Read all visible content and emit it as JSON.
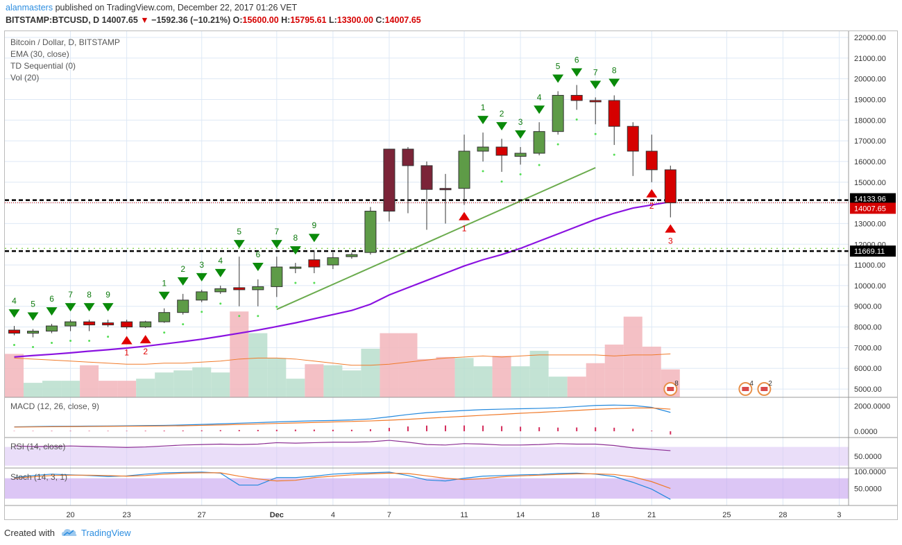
{
  "header": {
    "author": "alanmasters",
    "published_text": "published on TradingView.com, December 22, 2017 01:26 VET",
    "symbol": "BITSTAMP:BTCUSD, D",
    "price": "14007.65",
    "arrow": "▼",
    "change": "−1592.36 (−10.21%)",
    "o_label": "O:",
    "o_value": "15600.00",
    "h_label": "H:",
    "h_value": "15795.61",
    "l_label": "L:",
    "l_value": "13300.00",
    "c_label": "C:",
    "c_value": "14007.65"
  },
  "footer": {
    "created_with": "Created with",
    "brand": "TradingView"
  },
  "colors": {
    "up_fill": "#5e9b47",
    "down_fill": "#d50000",
    "dark_fill": "#7b2438",
    "ema": "#8a12e0",
    "trend": "#6aab4d",
    "td_green": "#0d7a0d",
    "td_red": "#e00000",
    "vol_up": "#b8decd",
    "vol_down": "#f2b5bb",
    "grid": "#dde8f5",
    "macd": "#2288dd",
    "signal": "#f07a2a",
    "rsi": "#8b2c93",
    "stoch_k": "#2288dd",
    "stoch_d": "#f07a2a",
    "osc_band": "#dcc8f5"
  },
  "chart_data": {
    "type": "candlestick",
    "title": "Bitcoin / Dollar, D, BITSTAMP",
    "indicators": [
      "EMA (30, close)",
      "TD Sequential (0)",
      "Vol (20)"
    ],
    "x_tick_labels": [
      {
        "i": 3,
        "label": "20"
      },
      {
        "i": 6,
        "label": "23"
      },
      {
        "i": 10,
        "label": "27"
      },
      {
        "i": 14,
        "label": "Dec"
      },
      {
        "i": 17,
        "label": "4"
      },
      {
        "i": 20,
        "label": "7"
      },
      {
        "i": 24,
        "label": "11"
      },
      {
        "i": 27,
        "label": "14"
      },
      {
        "i": 31,
        "label": "18"
      },
      {
        "i": 34,
        "label": "21"
      },
      {
        "i": 38,
        "label": "25"
      },
      {
        "i": 41,
        "label": "28"
      },
      {
        "i": 44,
        "label": "3"
      }
    ],
    "total_slots": 45,
    "y_ticks": [
      5000,
      6000,
      7000,
      8000,
      9000,
      10000,
      11000,
      12000,
      13000,
      14000,
      15000,
      16000,
      17000,
      18000,
      19000,
      20000,
      21000,
      22000
    ],
    "y_tick_labels": [
      "5000.00",
      "6000.00",
      "7000.00",
      "8000.00",
      "9000.00",
      "10000.00",
      "11000.00",
      "12000.00",
      "13000.00",
      "14000.00",
      "15000.00",
      "16000.00",
      "17000.00",
      "18000.00",
      "19000.00",
      "20000.00",
      "21000.00",
      "22000.00"
    ],
    "ylim": [
      4600,
      22300
    ],
    "candles": [
      {
        "o": 7850,
        "h": 8050,
        "l": 7600,
        "c": 7700,
        "v": 6700,
        "k": "dn"
      },
      {
        "o": 7700,
        "h": 7900,
        "l": 7500,
        "c": 7800,
        "v": 5300,
        "k": "up"
      },
      {
        "o": 7800,
        "h": 8150,
        "l": 7700,
        "c": 8050,
        "v": 5400,
        "k": "up"
      },
      {
        "o": 8050,
        "h": 8350,
        "l": 7800,
        "c": 8250,
        "v": 5400,
        "k": "up"
      },
      {
        "o": 8250,
        "h": 8350,
        "l": 7800,
        "c": 8100,
        "v": 6150,
        "k": "dn"
      },
      {
        "o": 8200,
        "h": 8350,
        "l": 8000,
        "c": 8100,
        "v": 5400,
        "k": "dn"
      },
      {
        "o": 8250,
        "h": 8350,
        "l": 7900,
        "c": 8000,
        "v": 5400,
        "k": "dn"
      },
      {
        "o": 8000,
        "h": 8300,
        "l": 7950,
        "c": 8250,
        "v": 5500,
        "k": "up"
      },
      {
        "o": 8250,
        "h": 8900,
        "l": 8200,
        "c": 8700,
        "v": 5800,
        "k": "up"
      },
      {
        "o": 8700,
        "h": 9600,
        "l": 8600,
        "c": 9300,
        "v": 5900,
        "k": "up"
      },
      {
        "o": 9300,
        "h": 9800,
        "l": 9200,
        "c": 9700,
        "v": 6050,
        "k": "up"
      },
      {
        "o": 9700,
        "h": 10000,
        "l": 9600,
        "c": 9850,
        "v": 5800,
        "k": "up"
      },
      {
        "o": 9900,
        "h": 11400,
        "l": 9000,
        "c": 9800,
        "v": 8750,
        "k": "dn"
      },
      {
        "o": 9800,
        "h": 10300,
        "l": 9000,
        "c": 9950,
        "v": 7700,
        "k": "up"
      },
      {
        "o": 9950,
        "h": 11400,
        "l": 9450,
        "c": 10900,
        "v": 6500,
        "k": "up"
      },
      {
        "o": 10850,
        "h": 11100,
        "l": 10600,
        "c": 10900,
        "v": 5500,
        "k": "up"
      },
      {
        "o": 11250,
        "h": 11700,
        "l": 10600,
        "c": 10900,
        "v": 6200,
        "k": "dn"
      },
      {
        "o": 11000,
        "h": 11600,
        "l": 10800,
        "c": 11350,
        "v": 6150,
        "k": "up"
      },
      {
        "o": 11400,
        "h": 11600,
        "l": 11300,
        "c": 11500,
        "v": 5900,
        "k": "up"
      },
      {
        "o": 11600,
        "h": 13800,
        "l": 11500,
        "c": 13600,
        "v": 6950,
        "k": "up"
      },
      {
        "o": 13600,
        "h": 16600,
        "l": 13100,
        "c": 16600,
        "v": 7700,
        "k": "dark"
      },
      {
        "o": 16600,
        "h": 16700,
        "l": 13500,
        "c": 15800,
        "v": 7700,
        "k": "dark"
      },
      {
        "o": 15800,
        "h": 16000,
        "l": 12700,
        "c": 14650,
        "v": 6450,
        "k": "dark"
      },
      {
        "o": 14700,
        "h": 15400,
        "l": 13000,
        "c": 14650,
        "v": 6550,
        "k": "dark"
      },
      {
        "o": 14700,
        "h": 17300,
        "l": 13900,
        "c": 16500,
        "v": 6500,
        "k": "up"
      },
      {
        "o": 16500,
        "h": 17400,
        "l": 16000,
        "c": 16700,
        "v": 6100,
        "k": "up"
      },
      {
        "o": 16700,
        "h": 17100,
        "l": 15500,
        "c": 16300,
        "v": 6600,
        "k": "dn"
      },
      {
        "o": 16250,
        "h": 16700,
        "l": 15850,
        "c": 16400,
        "v": 6100,
        "k": "up"
      },
      {
        "o": 16400,
        "h": 17900,
        "l": 16300,
        "c": 17450,
        "v": 6850,
        "k": "up"
      },
      {
        "o": 17450,
        "h": 19400,
        "l": 17300,
        "c": 19200,
        "v": 5600,
        "k": "up"
      },
      {
        "o": 19200,
        "h": 19700,
        "l": 18500,
        "c": 18950,
        "v": 5600,
        "k": "dn"
      },
      {
        "o": 18950,
        "h": 19100,
        "l": 17800,
        "c": 18950,
        "v": 6250,
        "k": "dn"
      },
      {
        "o": 18950,
        "h": 19200,
        "l": 16800,
        "c": 17700,
        "v": 7150,
        "k": "dn"
      },
      {
        "o": 17700,
        "h": 17900,
        "l": 15300,
        "c": 16500,
        "v": 8500,
        "k": "dn"
      },
      {
        "o": 16500,
        "h": 17300,
        "l": 15000,
        "c": 15600,
        "v": 7050,
        "k": "dn"
      },
      {
        "o": 15600,
        "h": 15800,
        "l": 13300,
        "c": 14000,
        "v": 5950,
        "k": "dn"
      }
    ],
    "ema_30": [
      6550,
      6620,
      6680,
      6750,
      6830,
      6900,
      6980,
      7070,
      7180,
      7290,
      7410,
      7550,
      7700,
      7850,
      8020,
      8200,
      8400,
      8600,
      8800,
      9100,
      9550,
      9900,
      10250,
      10600,
      10950,
      11250,
      11500,
      11800,
      12150,
      12500,
      12850,
      13200,
      13500,
      13750,
      13900,
      14050
    ],
    "volume_ma_20": [
      6500,
      6450,
      6400,
      6350,
      6300,
      6250,
      6200,
      6200,
      6250,
      6250,
      6300,
      6350,
      6450,
      6500,
      6500,
      6450,
      6350,
      6250,
      6150,
      6150,
      6200,
      6300,
      6400,
      6500,
      6550,
      6600,
      6550,
      6600,
      6650,
      6650,
      6650,
      6650,
      6600,
      6650,
      6650,
      6700
    ],
    "trend_line": {
      "from": {
        "i": 14,
        "price": 8850
      },
      "to": {
        "i": 31,
        "price": 15700
      }
    },
    "levels": [
      {
        "price": 14133.96,
        "label": "14133.96",
        "bg": "#000000",
        "text_color": "#ffffff"
      },
      {
        "price": 14007.65,
        "label": "14007.65",
        "bg": "#d50000",
        "text_color": "#ffffff"
      },
      {
        "price": 11669.11,
        "label": "11669.11",
        "bg": "#000000",
        "text_color": "#ffffff"
      }
    ],
    "support_dotted": {
      "price": 11800
    },
    "td_sell_setup": [
      {
        "i": 0,
        "n": "4"
      },
      {
        "i": 1,
        "n": "5"
      },
      {
        "i": 2,
        "n": "6"
      },
      {
        "i": 3,
        "n": "7"
      },
      {
        "i": 4,
        "n": "8"
      },
      {
        "i": 5,
        "n": "9"
      },
      {
        "i": 8,
        "n": "1"
      },
      {
        "i": 9,
        "n": "2"
      },
      {
        "i": 10,
        "n": "3"
      },
      {
        "i": 11,
        "n": "4"
      },
      {
        "i": 12,
        "n": "5"
      },
      {
        "i": 13,
        "n": "6"
      },
      {
        "i": 14,
        "n": "7"
      },
      {
        "i": 15,
        "n": "8"
      },
      {
        "i": 16,
        "n": "9"
      },
      {
        "i": 25,
        "n": "1"
      },
      {
        "i": 26,
        "n": "2"
      },
      {
        "i": 27,
        "n": "3"
      },
      {
        "i": 28,
        "n": "4"
      },
      {
        "i": 29,
        "n": "5"
      },
      {
        "i": 30,
        "n": "6"
      },
      {
        "i": 31,
        "n": "7"
      },
      {
        "i": 32,
        "n": "8"
      }
    ],
    "td_buy_setup": [
      {
        "i": 6,
        "n": "1"
      },
      {
        "i": 7,
        "n": "2"
      },
      {
        "i": 24,
        "n": "1"
      },
      {
        "i": 34,
        "n": "2"
      },
      {
        "i": 35,
        "n": "3"
      }
    ],
    "markers": [
      {
        "i": 35,
        "n": "8"
      },
      {
        "i": 39,
        "n": "4"
      },
      {
        "i": 40,
        "n": "2"
      }
    ],
    "macd": {
      "label": "MACD (12, 26, close, 9)",
      "y_tick_labels": [
        "2000.0000",
        "0.0000"
      ],
      "y_ticks": [
        2000,
        0
      ],
      "ylim": [
        -500,
        2700
      ],
      "macd": [
        350,
        370,
        390,
        400,
        410,
        420,
        430,
        450,
        470,
        500,
        540,
        590,
        640,
        690,
        740,
        790,
        830,
        860,
        900,
        980,
        1150,
        1330,
        1480,
        1570,
        1650,
        1720,
        1760,
        1790,
        1820,
        1870,
        1960,
        2050,
        2080,
        2050,
        1900,
        1500
      ],
      "signal": [
        330,
        345,
        360,
        370,
        380,
        390,
        400,
        410,
        420,
        440,
        470,
        500,
        540,
        580,
        620,
        660,
        700,
        740,
        780,
        820,
        880,
        950,
        1030,
        1110,
        1190,
        1270,
        1350,
        1430,
        1500,
        1580,
        1660,
        1740,
        1800,
        1850,
        1850,
        1760
      ],
      "histogram": [
        20,
        25,
        30,
        30,
        30,
        30,
        30,
        40,
        50,
        60,
        70,
        90,
        100,
        110,
        120,
        130,
        130,
        120,
        120,
        160,
        270,
        380,
        450,
        460,
        460,
        450,
        410,
        360,
        320,
        290,
        300,
        310,
        280,
        200,
        50,
        -260
      ]
    },
    "rsi": {
      "label": "RSI (14, close)",
      "y_tick_labels": [
        "50.0000"
      ],
      "y_ticks": [
        50
      ],
      "ylim": [
        25,
        90
      ],
      "band": [
        30,
        70
      ],
      "values": [
        72,
        71,
        71,
        72,
        71,
        70,
        69,
        70,
        72,
        74,
        75,
        76,
        75,
        76,
        79,
        78,
        79,
        80,
        80,
        81,
        84,
        80,
        75,
        74,
        77,
        76,
        74,
        74,
        75,
        77,
        76,
        76,
        73,
        68,
        65,
        62
      ]
    },
    "stoch": {
      "label": "Stoch (14, 3, 1)",
      "y_tick_labels": [
        "100.0000",
        "50.0000"
      ],
      "y_ticks": [
        100,
        50
      ],
      "ylim": [
        0,
        110
      ],
      "band": [
        20,
        80
      ],
      "k": [
        82,
        88,
        92,
        90,
        88,
        85,
        87,
        92,
        96,
        97,
        98,
        95,
        60,
        60,
        82,
        82,
        86,
        92,
        95,
        96,
        98,
        88,
        75,
        72,
        80,
        86,
        88,
        90,
        91,
        94,
        95,
        92,
        85,
        68,
        48,
        18
      ],
      "d": [
        80,
        84,
        88,
        89,
        89,
        88,
        86,
        88,
        92,
        95,
        96,
        96,
        86,
        78,
        72,
        74,
        82,
        86,
        90,
        93,
        95,
        94,
        87,
        80,
        76,
        79,
        84,
        87,
        89,
        91,
        93,
        93,
        91,
        84,
        70,
        50
      ]
    }
  }
}
